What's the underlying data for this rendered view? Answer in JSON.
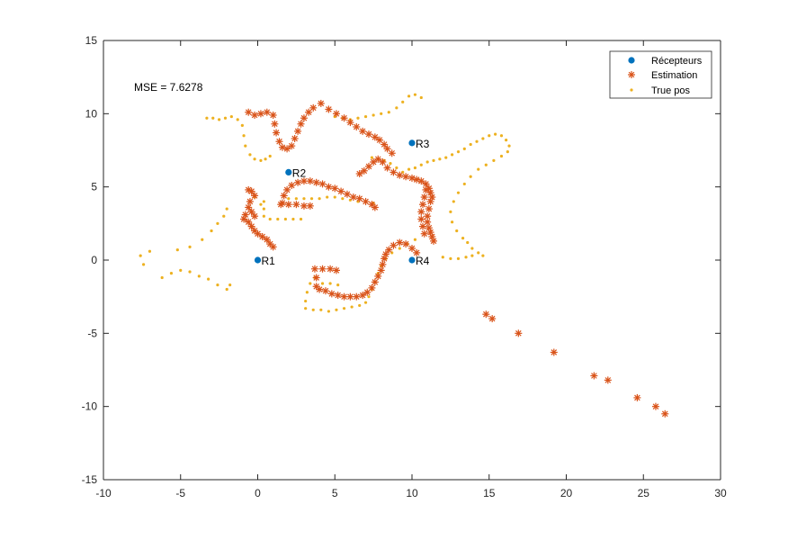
{
  "chart_data": {
    "type": "scatter",
    "title": "",
    "xlabel": "",
    "ylabel": "",
    "xlim": [
      -10,
      30
    ],
    "ylim": [
      -15,
      15
    ],
    "xticks": [
      -10,
      -5,
      0,
      5,
      10,
      15,
      20,
      25,
      30
    ],
    "yticks": [
      -15,
      -10,
      -5,
      0,
      5,
      10,
      15
    ],
    "grid": false,
    "legend_position": "top-right",
    "annotation": "MSE = 7.6278",
    "receivers": [
      {
        "label": "R1",
        "x": 0,
        "y": 0
      },
      {
        "label": "R2",
        "x": 2,
        "y": 6
      },
      {
        "label": "R3",
        "x": 10,
        "y": 8
      },
      {
        "label": "R4",
        "x": 10,
        "y": 0
      }
    ],
    "series": [
      {
        "name": "Récepteurs",
        "marker": "filled-circle",
        "color": "#0072BD",
        "points": [
          [
            0,
            0
          ],
          [
            2,
            6
          ],
          [
            10,
            8
          ],
          [
            10,
            0
          ]
        ]
      },
      {
        "name": "Estimation",
        "marker": "asterisk",
        "color": "#D95319",
        "points": [
          [
            -0.6,
            10.1
          ],
          [
            -0.2,
            9.9
          ],
          [
            0.2,
            10.0
          ],
          [
            0.6,
            10.1
          ],
          [
            1.0,
            9.9
          ],
          [
            1.1,
            9.3
          ],
          [
            1.2,
            8.7
          ],
          [
            1.4,
            8.1
          ],
          [
            1.6,
            7.7
          ],
          [
            1.9,
            7.6
          ],
          [
            2.2,
            7.8
          ],
          [
            2.4,
            8.3
          ],
          [
            2.6,
            8.8
          ],
          [
            2.8,
            9.3
          ],
          [
            3.0,
            9.7
          ],
          [
            3.3,
            10.1
          ],
          [
            3.6,
            10.4
          ],
          [
            4.1,
            10.7
          ],
          [
            4.6,
            10.3
          ],
          [
            5.1,
            10.0
          ],
          [
            5.6,
            9.7
          ],
          [
            6.0,
            9.4
          ],
          [
            6.4,
            9.1
          ],
          [
            6.8,
            8.8
          ],
          [
            7.2,
            8.6
          ],
          [
            7.6,
            8.4
          ],
          [
            7.9,
            8.2
          ],
          [
            8.2,
            7.9
          ],
          [
            8.4,
            7.6
          ],
          [
            8.7,
            7.3
          ],
          [
            6.6,
            5.9
          ],
          [
            6.9,
            6.1
          ],
          [
            7.2,
            6.4
          ],
          [
            7.5,
            6.7
          ],
          [
            7.8,
            6.9
          ],
          [
            8.1,
            6.7
          ],
          [
            8.4,
            6.3
          ],
          [
            8.8,
            6.0
          ],
          [
            9.2,
            5.8
          ],
          [
            9.6,
            5.7
          ],
          [
            10.0,
            5.6
          ],
          [
            10.3,
            5.5
          ],
          [
            10.6,
            5.4
          ],
          [
            10.9,
            5.2
          ],
          [
            11.1,
            4.9
          ],
          [
            11.2,
            4.6
          ],
          [
            11.3,
            4.3
          ],
          [
            11.2,
            4.0
          ],
          [
            11.1,
            3.5
          ],
          [
            11.0,
            3.0
          ],
          [
            11.0,
            2.6
          ],
          [
            11.1,
            2.2
          ],
          [
            11.2,
            1.9
          ],
          [
            11.3,
            1.6
          ],
          [
            11.4,
            1.3
          ],
          [
            10.9,
            4.8
          ],
          [
            10.8,
            4.3
          ],
          [
            10.7,
            3.8
          ],
          [
            10.6,
            3.3
          ],
          [
            10.6,
            2.8
          ],
          [
            10.7,
            2.3
          ],
          [
            10.8,
            1.8
          ],
          [
            1.6,
            3.9
          ],
          [
            1.7,
            4.4
          ],
          [
            1.9,
            4.8
          ],
          [
            2.2,
            5.1
          ],
          [
            2.6,
            5.3
          ],
          [
            3.0,
            5.4
          ],
          [
            3.4,
            5.4
          ],
          [
            3.8,
            5.3
          ],
          [
            4.2,
            5.2
          ],
          [
            4.6,
            5.0
          ],
          [
            5.0,
            4.9
          ],
          [
            5.4,
            4.7
          ],
          [
            5.8,
            4.5
          ],
          [
            6.2,
            4.3
          ],
          [
            6.6,
            4.2
          ],
          [
            7.0,
            4.0
          ],
          [
            7.4,
            3.8
          ],
          [
            7.6,
            3.6
          ],
          [
            1.5,
            3.8
          ],
          [
            2.0,
            3.8
          ],
          [
            2.5,
            3.8
          ],
          [
            3.0,
            3.7
          ],
          [
            3.4,
            3.7
          ],
          [
            -0.6,
            4.8
          ],
          [
            -0.4,
            4.7
          ],
          [
            -0.2,
            4.4
          ],
          [
            -0.5,
            4.0
          ],
          [
            -0.6,
            3.6
          ],
          [
            -0.8,
            3.1
          ],
          [
            -0.9,
            2.8
          ],
          [
            -0.6,
            2.6
          ],
          [
            -0.4,
            2.3
          ],
          [
            -0.2,
            2.0
          ],
          [
            0.0,
            1.8
          ],
          [
            0.3,
            1.6
          ],
          [
            0.6,
            1.4
          ],
          [
            0.8,
            1.1
          ],
          [
            1.0,
            0.9
          ],
          [
            -0.2,
            3.0
          ],
          [
            -0.4,
            3.3
          ],
          [
            3.7,
            -0.6
          ],
          [
            4.2,
            -0.6
          ],
          [
            4.7,
            -0.6
          ],
          [
            5.1,
            -0.7
          ],
          [
            3.8,
            -1.2
          ],
          [
            3.8,
            -1.8
          ],
          [
            4.0,
            -2.0
          ],
          [
            4.4,
            -2.1
          ],
          [
            4.8,
            -2.3
          ],
          [
            5.2,
            -2.4
          ],
          [
            5.6,
            -2.5
          ],
          [
            6.0,
            -2.5
          ],
          [
            6.4,
            -2.5
          ],
          [
            6.8,
            -2.4
          ],
          [
            7.1,
            -2.2
          ],
          [
            7.4,
            -1.9
          ],
          [
            7.6,
            -1.5
          ],
          [
            7.8,
            -1.1
          ],
          [
            8.0,
            -0.7
          ],
          [
            8.1,
            -0.3
          ],
          [
            8.2,
            0.1
          ],
          [
            8.3,
            0.4
          ],
          [
            8.5,
            0.7
          ],
          [
            8.8,
            1.0
          ],
          [
            9.2,
            1.2
          ],
          [
            9.6,
            1.1
          ],
          [
            10.0,
            0.8
          ],
          [
            10.3,
            0.5
          ],
          [
            14.8,
            -3.7
          ],
          [
            15.2,
            -4.0
          ],
          [
            16.9,
            -5.0
          ],
          [
            19.2,
            -6.3
          ],
          [
            21.8,
            -7.9
          ],
          [
            22.7,
            -8.2
          ],
          [
            24.6,
            -9.4
          ],
          [
            25.8,
            -10.0
          ],
          [
            26.4,
            -10.5
          ]
        ]
      },
      {
        "name": "True pos",
        "marker": "dot",
        "color": "#EDB120",
        "points": [
          [
            -3.3,
            9.7
          ],
          [
            -2.9,
            9.7
          ],
          [
            -2.5,
            9.6
          ],
          [
            -2.1,
            9.7
          ],
          [
            -1.7,
            9.8
          ],
          [
            -1.3,
            9.6
          ],
          [
            -1.0,
            9.2
          ],
          [
            -0.9,
            8.5
          ],
          [
            -0.8,
            7.8
          ],
          [
            -0.5,
            7.2
          ],
          [
            -0.2,
            6.9
          ],
          [
            0.2,
            6.8
          ],
          [
            0.5,
            6.9
          ],
          [
            0.8,
            7.1
          ],
          [
            5.0,
            9.8
          ],
          [
            5.5,
            9.7
          ],
          [
            6.0,
            9.6
          ],
          [
            6.5,
            9.7
          ],
          [
            7.0,
            9.8
          ],
          [
            7.5,
            9.9
          ],
          [
            8.0,
            10.0
          ],
          [
            8.5,
            10.1
          ],
          [
            9.0,
            10.4
          ],
          [
            9.4,
            10.8
          ],
          [
            9.8,
            11.2
          ],
          [
            10.2,
            11.3
          ],
          [
            10.6,
            11.1
          ],
          [
            7.4,
            7.0
          ],
          [
            7.8,
            6.9
          ],
          [
            8.2,
            6.8
          ],
          [
            8.6,
            6.6
          ],
          [
            9.0,
            6.3
          ],
          [
            9.4,
            6.0
          ],
          [
            9.8,
            6.2
          ],
          [
            10.2,
            6.3
          ],
          [
            10.6,
            6.5
          ],
          [
            11.0,
            6.7
          ],
          [
            11.4,
            6.8
          ],
          [
            11.8,
            6.9
          ],
          [
            12.2,
            7.0
          ],
          [
            12.6,
            7.2
          ],
          [
            13.0,
            7.4
          ],
          [
            13.4,
            7.6
          ],
          [
            13.8,
            7.9
          ],
          [
            14.2,
            8.1
          ],
          [
            14.6,
            8.3
          ],
          [
            15.0,
            8.5
          ],
          [
            15.4,
            8.6
          ],
          [
            15.8,
            8.5
          ],
          [
            16.1,
            8.2
          ],
          [
            16.3,
            7.8
          ],
          [
            16.2,
            7.4
          ],
          [
            15.8,
            7.1
          ],
          [
            15.3,
            6.8
          ],
          [
            14.8,
            6.5
          ],
          [
            14.3,
            6.2
          ],
          [
            13.8,
            5.7
          ],
          [
            13.4,
            5.2
          ],
          [
            13.0,
            4.6
          ],
          [
            12.7,
            4.0
          ],
          [
            12.5,
            3.3
          ],
          [
            12.6,
            2.6
          ],
          [
            12.9,
            2.0
          ],
          [
            13.3,
            1.5
          ],
          [
            13.6,
            1.2
          ],
          [
            13.9,
            0.8
          ],
          [
            14.3,
            0.5
          ],
          [
            14.6,
            0.3
          ],
          [
            12.0,
            0.2
          ],
          [
            12.5,
            0.1
          ],
          [
            13.0,
            0.1
          ],
          [
            13.5,
            0.2
          ],
          [
            13.9,
            0.3
          ],
          [
            2.0,
            4.2
          ],
          [
            2.5,
            4.2
          ],
          [
            3.0,
            4.2
          ],
          [
            3.5,
            4.2
          ],
          [
            4.0,
            4.2
          ],
          [
            4.5,
            4.3
          ],
          [
            5.0,
            4.3
          ],
          [
            5.5,
            4.2
          ],
          [
            6.0,
            4.1
          ],
          [
            6.5,
            4.0
          ],
          [
            7.0,
            4.0
          ],
          [
            7.5,
            3.9
          ],
          [
            0.4,
            4.0
          ],
          [
            0.4,
            3.5
          ],
          [
            0.4,
            3.0
          ],
          [
            0.8,
            2.8
          ],
          [
            1.3,
            2.8
          ],
          [
            1.8,
            2.8
          ],
          [
            2.3,
            2.8
          ],
          [
            2.8,
            2.8
          ],
          [
            -0.2,
            4.3
          ],
          [
            0.2,
            3.8
          ],
          [
            -7.6,
            0.3
          ],
          [
            -7.4,
            -0.3
          ],
          [
            -7.0,
            0.6
          ],
          [
            -6.2,
            -1.2
          ],
          [
            -5.6,
            -0.9
          ],
          [
            -5.0,
            -0.7
          ],
          [
            -4.4,
            -0.8
          ],
          [
            -3.8,
            -1.1
          ],
          [
            -3.2,
            -1.3
          ],
          [
            -2.6,
            -1.7
          ],
          [
            -2.0,
            -2.0
          ],
          [
            -1.8,
            -1.7
          ],
          [
            -5.2,
            0.7
          ],
          [
            -4.4,
            0.9
          ],
          [
            -3.6,
            1.4
          ],
          [
            -3.0,
            2.0
          ],
          [
            -2.6,
            2.5
          ],
          [
            -2.2,
            3.0
          ],
          [
            -2.0,
            3.5
          ],
          [
            3.1,
            -3.3
          ],
          [
            3.6,
            -3.4
          ],
          [
            4.1,
            -3.4
          ],
          [
            4.6,
            -3.5
          ],
          [
            5.1,
            -3.4
          ],
          [
            5.6,
            -3.3
          ],
          [
            6.1,
            -3.2
          ],
          [
            6.6,
            -3.1
          ],
          [
            7.0,
            -2.9
          ],
          [
            7.2,
            -2.5
          ],
          [
            7.4,
            -2.0
          ],
          [
            7.6,
            -1.5
          ],
          [
            7.8,
            -0.9
          ],
          [
            8.0,
            -0.4
          ],
          [
            8.3,
            0.1
          ],
          [
            8.7,
            0.5
          ],
          [
            9.2,
            0.8
          ],
          [
            9.7,
            1.1
          ],
          [
            10.2,
            1.4
          ],
          [
            3.1,
            -2.8
          ],
          [
            3.2,
            -2.2
          ],
          [
            3.4,
            -1.6
          ],
          [
            3.7,
            -1.2
          ],
          [
            4.2,
            -1.6
          ],
          [
            4.7,
            -1.6
          ],
          [
            5.2,
            -1.7
          ]
        ]
      }
    ]
  },
  "legend": {
    "items": [
      "Récepteurs",
      "Estimation",
      "True pos"
    ]
  }
}
